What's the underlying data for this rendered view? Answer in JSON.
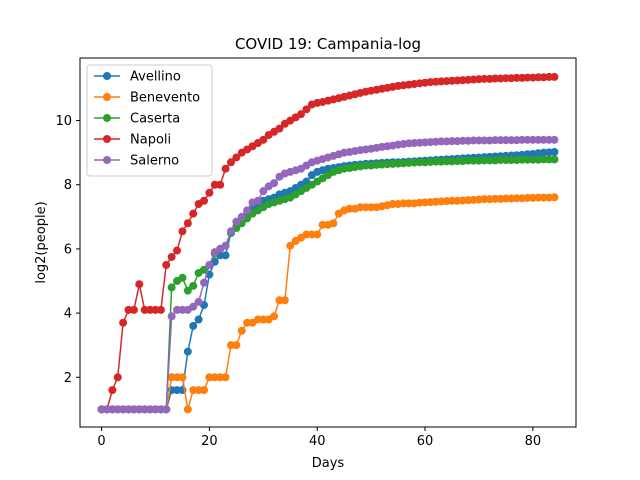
{
  "chart_data": {
    "type": "line",
    "title": "COVID 19: Campania-log",
    "xlabel": "Days",
    "ylabel": "log2(people)",
    "xlim": [
      -4,
      88
    ],
    "ylim": [
      0.45,
      11.95
    ],
    "xticks": [
      0,
      20,
      40,
      60,
      80
    ],
    "yticks": [
      2,
      4,
      6,
      8,
      10
    ],
    "grid": false,
    "legend_position": "top-left",
    "series": [
      {
        "name": "Avellino",
        "color": "#1f77b4",
        "values": [
          1,
          1,
          1,
          1,
          1,
          1,
          1,
          1,
          1,
          1,
          1,
          1,
          1,
          1.6,
          1.6,
          1.6,
          2.8,
          3.6,
          3.8,
          4.25,
          5.2,
          5.6,
          5.8,
          5.8,
          6.5,
          6.7,
          6.9,
          7.1,
          7.3,
          7.4,
          7.5,
          7.55,
          7.6,
          7.7,
          7.75,
          7.8,
          7.9,
          8.0,
          8.1,
          8.3,
          8.4,
          8.45,
          8.5,
          8.52,
          8.55,
          8.58,
          8.6,
          8.62,
          8.63,
          8.65,
          8.66,
          8.67,
          8.68,
          8.69,
          8.7,
          8.7,
          8.71,
          8.72,
          8.73,
          8.74,
          8.75,
          8.76,
          8.77,
          8.78,
          8.79,
          8.8,
          8.81,
          8.82,
          8.83,
          8.84,
          8.85,
          8.86,
          8.87,
          8.88,
          8.89,
          8.9,
          8.91,
          8.92,
          8.93,
          8.95,
          8.96,
          8.98,
          9.0,
          9.01,
          9.02
        ]
      },
      {
        "name": "Benevento",
        "color": "#ff7f0e",
        "values": [
          1,
          1,
          1,
          1,
          1,
          1,
          1,
          1,
          1,
          1,
          1,
          1,
          1,
          2.0,
          2.0,
          2.0,
          1.0,
          1.6,
          1.6,
          1.6,
          2.0,
          2.0,
          2.0,
          2.0,
          3.0,
          3.0,
          3.45,
          3.7,
          3.7,
          3.8,
          3.8,
          3.8,
          3.9,
          4.4,
          4.4,
          6.1,
          6.25,
          6.35,
          6.45,
          6.45,
          6.45,
          6.75,
          6.75,
          6.8,
          7.1,
          7.2,
          7.25,
          7.25,
          7.3,
          7.3,
          7.3,
          7.3,
          7.33,
          7.36,
          7.4,
          7.4,
          7.42,
          7.42,
          7.42,
          7.44,
          7.45,
          7.46,
          7.47,
          7.48,
          7.49,
          7.5,
          7.5,
          7.51,
          7.52,
          7.53,
          7.54,
          7.55,
          7.55,
          7.56,
          7.56,
          7.57,
          7.57,
          7.58,
          7.58,
          7.59,
          7.59,
          7.6,
          7.6,
          7.6,
          7.61
        ]
      },
      {
        "name": "Caserta",
        "color": "#2ca02c",
        "values": [
          1,
          1,
          1,
          1,
          1,
          1,
          1,
          1,
          1,
          1,
          1,
          1,
          1,
          4.8,
          5.0,
          5.1,
          4.7,
          4.85,
          5.25,
          5.35,
          5.5,
          5.85,
          6.0,
          6.1,
          6.5,
          6.65,
          6.8,
          6.95,
          7.1,
          7.2,
          7.3,
          7.4,
          7.45,
          7.5,
          7.55,
          7.6,
          7.7,
          7.8,
          7.9,
          8.0,
          8.1,
          8.2,
          8.3,
          8.4,
          8.45,
          8.5,
          8.52,
          8.55,
          8.57,
          8.6,
          8.6,
          8.62,
          8.63,
          8.64,
          8.65,
          8.66,
          8.67,
          8.68,
          8.69,
          8.7,
          8.7,
          8.71,
          8.72,
          8.72,
          8.73,
          8.73,
          8.74,
          8.74,
          8.75,
          8.75,
          8.75,
          8.76,
          8.76,
          8.76,
          8.77,
          8.77,
          8.77,
          8.77,
          8.78,
          8.78,
          8.78,
          8.78,
          8.79,
          8.79,
          8.79
        ]
      },
      {
        "name": "Napoli",
        "color": "#d62728",
        "values": [
          1,
          1,
          1.6,
          2.0,
          3.7,
          4.1,
          4.1,
          4.9,
          4.1,
          4.1,
          4.1,
          4.1,
          5.5,
          5.75,
          5.95,
          6.55,
          6.8,
          7.1,
          7.4,
          7.5,
          7.75,
          8.0,
          8.0,
          8.5,
          8.7,
          8.85,
          9.0,
          9.1,
          9.2,
          9.3,
          9.4,
          9.55,
          9.65,
          9.75,
          9.9,
          10.0,
          10.1,
          10.2,
          10.35,
          10.5,
          10.55,
          10.58,
          10.62,
          10.66,
          10.7,
          10.74,
          10.78,
          10.82,
          10.86,
          10.9,
          10.93,
          10.96,
          10.99,
          11.02,
          11.05,
          11.08,
          11.1,
          11.12,
          11.14,
          11.16,
          11.18,
          11.2,
          11.21,
          11.22,
          11.23,
          11.24,
          11.25,
          11.26,
          11.27,
          11.28,
          11.29,
          11.3,
          11.3,
          11.31,
          11.31,
          11.32,
          11.32,
          11.33,
          11.33,
          11.34,
          11.34,
          11.35,
          11.35,
          11.36,
          11.36
        ]
      },
      {
        "name": "Salerno",
        "color": "#9467bd",
        "values": [
          1,
          1,
          1,
          1,
          1,
          1,
          1,
          1,
          1,
          1,
          1,
          1,
          1,
          3.9,
          4.1,
          4.1,
          4.1,
          4.2,
          4.35,
          4.95,
          5.5,
          5.9,
          6.0,
          6.1,
          6.55,
          6.85,
          7.0,
          7.2,
          7.45,
          7.5,
          7.8,
          7.95,
          8.05,
          8.25,
          8.35,
          8.4,
          8.45,
          8.5,
          8.6,
          8.7,
          8.75,
          8.8,
          8.85,
          8.9,
          8.95,
          9.0,
          9.02,
          9.05,
          9.08,
          9.1,
          9.12,
          9.15,
          9.18,
          9.2,
          9.22,
          9.25,
          9.27,
          9.29,
          9.3,
          9.31,
          9.32,
          9.33,
          9.34,
          9.35,
          9.35,
          9.36,
          9.36,
          9.37,
          9.37,
          9.38,
          9.38,
          9.38,
          9.38,
          9.39,
          9.39,
          9.39,
          9.39,
          9.39,
          9.4,
          9.4,
          9.4,
          9.4,
          9.4,
          9.4,
          9.4
        ]
      }
    ]
  }
}
